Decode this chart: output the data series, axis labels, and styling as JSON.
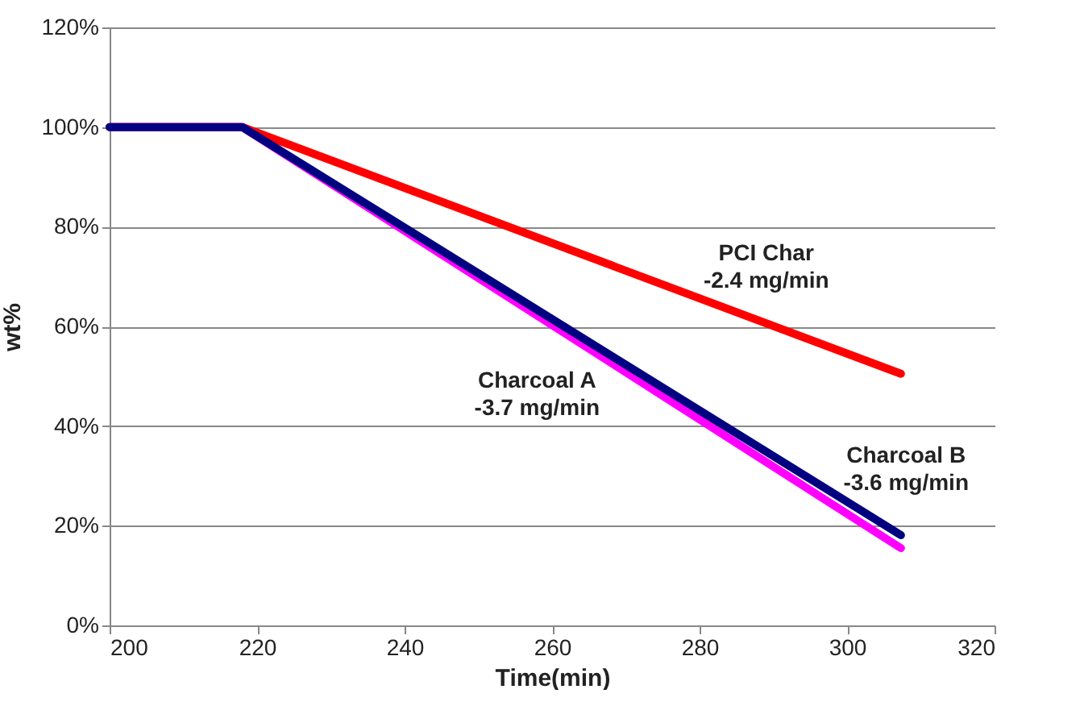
{
  "chart_data": {
    "type": "line",
    "xlabel": "Time(min)",
    "ylabel": "wt%",
    "xlim": [
      200,
      320
    ],
    "xticks": [
      200,
      220,
      240,
      260,
      280,
      300,
      320
    ],
    "ylim": [
      0,
      120
    ],
    "yticks": [
      {
        "value": 0,
        "label": "0%"
      },
      {
        "value": 20,
        "label": "20%"
      },
      {
        "value": 40,
        "label": "40%"
      },
      {
        "value": 60,
        "label": "60%"
      },
      {
        "value": 80,
        "label": "80%"
      },
      {
        "value": 100,
        "label": "100%"
      },
      {
        "value": 120,
        "label": "120%"
      }
    ],
    "grid": "y",
    "legend": false,
    "marker": "none",
    "line_style": "solid",
    "series": [
      {
        "name": "PCI Char",
        "color": "#ff0000",
        "x": [
          200,
          218,
          307.3
        ],
        "values": [
          100,
          100,
          50.5
        ]
      },
      {
        "name": "Charcoal A",
        "color": "#ff00ff",
        "x": [
          200,
          218,
          307.3
        ],
        "values": [
          100,
          100,
          15.5
        ]
      },
      {
        "name": "Charcoal B",
        "color": "#000080",
        "x": [
          200,
          218,
          307.3
        ],
        "values": [
          100,
          100,
          18.1
        ]
      }
    ],
    "annotations": [
      "-2.4 mg/min",
      "-3.7 mg/min",
      "-3.6 mg/min"
    ]
  }
}
